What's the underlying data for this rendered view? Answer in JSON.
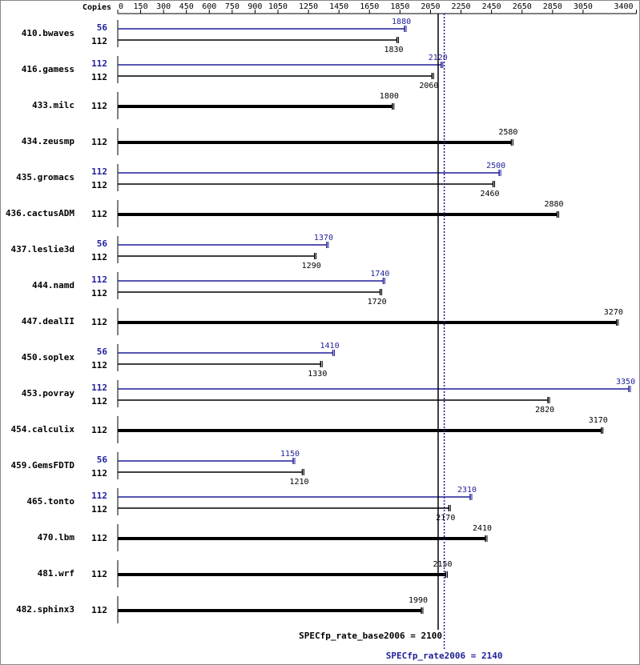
{
  "chart_data": {
    "type": "spec-bar",
    "copies_header": "Copies",
    "xlim": [
      0,
      3400
    ],
    "xticks": [
      0,
      150,
      300,
      450,
      600,
      750,
      900,
      1050,
      1250,
      1450,
      1650,
      1850,
      2050,
      2250,
      2450,
      2650,
      2850,
      3050,
      3400
    ],
    "base_color": "#000000",
    "peak_color": "#1f1f99",
    "benchmarks": [
      {
        "name": "410.bwaves",
        "peak_copies": 56,
        "peak": 1880,
        "base_copies": 112,
        "base": 1830
      },
      {
        "name": "416.gamess",
        "peak_copies": 112,
        "peak": 2120,
        "base_copies": 112,
        "base": 2060
      },
      {
        "name": "433.milc",
        "base_copies": 112,
        "base": 1800
      },
      {
        "name": "434.zeusmp",
        "base_copies": 112,
        "base": 2580
      },
      {
        "name": "435.gromacs",
        "peak_copies": 112,
        "peak": 2500,
        "base_copies": 112,
        "base": 2460
      },
      {
        "name": "436.cactusADM",
        "base_copies": 112,
        "base": 2880
      },
      {
        "name": "437.leslie3d",
        "peak_copies": 56,
        "peak": 1370,
        "base_copies": 112,
        "base": 1290
      },
      {
        "name": "444.namd",
        "peak_copies": 112,
        "peak": 1740,
        "base_copies": 112,
        "base": 1720
      },
      {
        "name": "447.dealII",
        "base_copies": 112,
        "base": 3270
      },
      {
        "name": "450.soplex",
        "peak_copies": 56,
        "peak": 1410,
        "base_copies": 112,
        "base": 1330
      },
      {
        "name": "453.povray",
        "peak_copies": 112,
        "peak": 3350,
        "base_copies": 112,
        "base": 2820
      },
      {
        "name": "454.calculix",
        "base_copies": 112,
        "base": 3170
      },
      {
        "name": "459.GemsFDTD",
        "peak_copies": 56,
        "peak": 1150,
        "base_copies": 112,
        "base": 1210
      },
      {
        "name": "465.tonto",
        "peak_copies": 112,
        "peak": 2310,
        "base_copies": 112,
        "base": 2170
      },
      {
        "name": "470.lbm",
        "base_copies": 112,
        "base": 2410
      },
      {
        "name": "481.wrf",
        "base_copies": 112,
        "base": 2150
      },
      {
        "name": "482.sphinx3",
        "base_copies": 112,
        "base": 1990
      }
    ],
    "reference_lines": [
      {
        "label": "SPECfp_rate_base2006 = 2100",
        "value": 2100,
        "style": "solid",
        "color": "#000000"
      },
      {
        "label": "SPECfp_rate2006 = 2140",
        "value": 2140,
        "style": "dotted",
        "color": "#1f1f99"
      }
    ]
  }
}
